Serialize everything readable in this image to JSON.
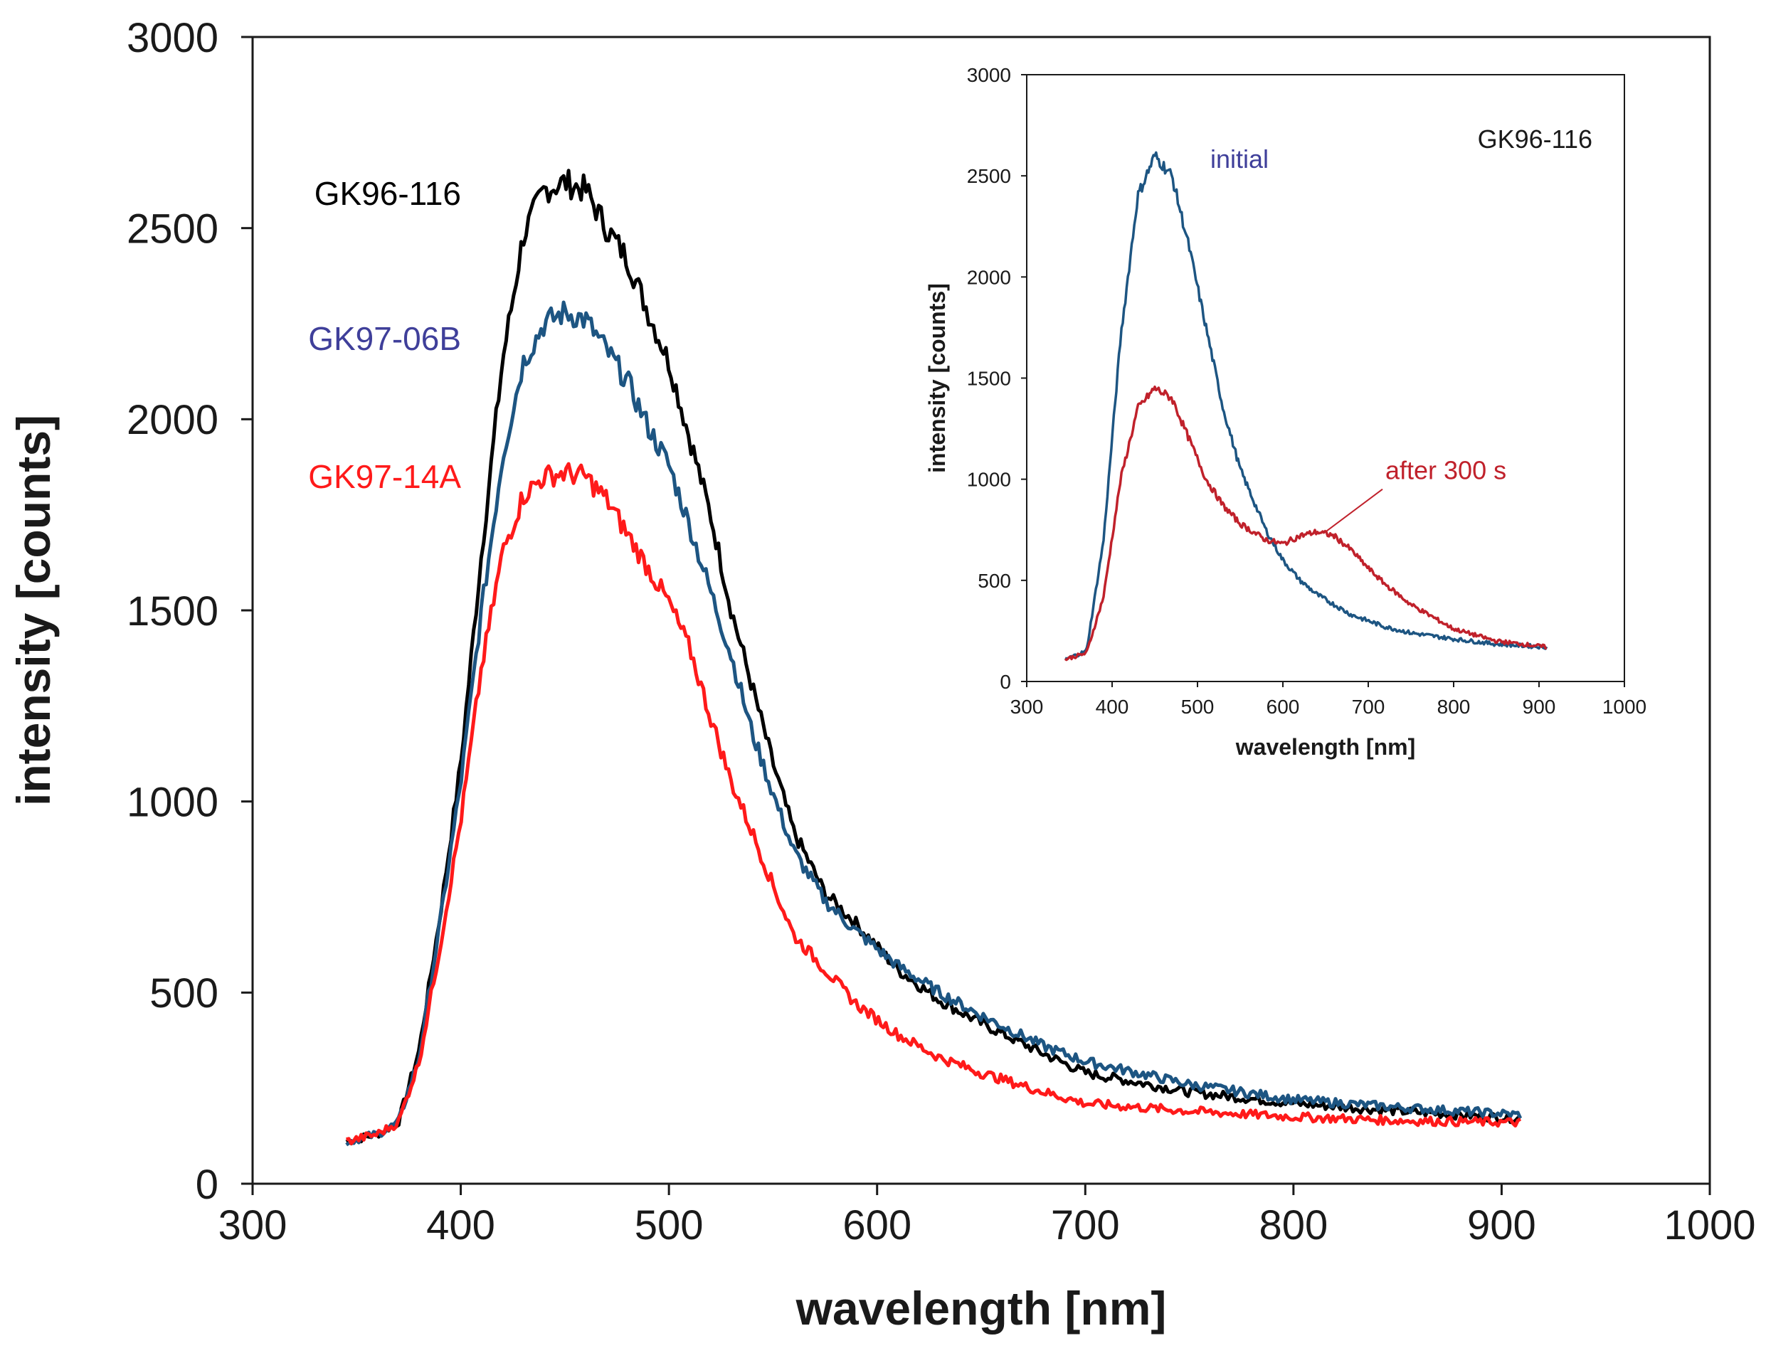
{
  "chart_data": [
    {
      "type": "line",
      "id": "main",
      "title": "",
      "xlabel": "wavelength [nm]",
      "ylabel": "intensity [counts]",
      "xlim": [
        300,
        1000
      ],
      "ylim": [
        0,
        3000
      ],
      "xticks": [
        300,
        400,
        500,
        600,
        700,
        800,
        900,
        1000
      ],
      "yticks": [
        0,
        500,
        1000,
        1500,
        2000,
        2500,
        3000
      ],
      "grid": false,
      "legend_position": "left, beside curves",
      "x": [
        345,
        360,
        370,
        380,
        390,
        400,
        410,
        420,
        430,
        440,
        450,
        460,
        470,
        480,
        490,
        500,
        510,
        520,
        530,
        540,
        550,
        560,
        575,
        590,
        610,
        630,
        650,
        680,
        700,
        750,
        800,
        850,
        910
      ],
      "series": [
        {
          "name": "GK96-116",
          "color": "#000000",
          "values": [
            110,
            130,
            160,
            350,
            700,
            1100,
            1650,
            2150,
            2480,
            2600,
            2620,
            2600,
            2500,
            2420,
            2280,
            2150,
            1950,
            1750,
            1500,
            1300,
            1100,
            920,
            760,
            680,
            560,
            480,
            420,
            340,
            290,
            240,
            210,
            190,
            170
          ]
        },
        {
          "name": "GK97-06B",
          "color": "#1d5582",
          "values": [
            110,
            130,
            160,
            330,
            680,
            1050,
            1500,
            1900,
            2150,
            2250,
            2280,
            2260,
            2180,
            2100,
            1980,
            1880,
            1720,
            1550,
            1380,
            1180,
            1020,
            870,
            740,
            660,
            570,
            500,
            440,
            360,
            320,
            260,
            220,
            200,
            180
          ]
        },
        {
          "name": "GK97-14A",
          "color": "#ff1a1a",
          "values": [
            110,
            130,
            160,
            320,
            620,
            950,
            1350,
            1650,
            1800,
            1850,
            1860,
            1850,
            1790,
            1700,
            1610,
            1520,
            1400,
            1220,
            1050,
            920,
            780,
            650,
            560,
            470,
            390,
            330,
            290,
            240,
            210,
            190,
            175,
            165,
            160
          ]
        }
      ]
    },
    {
      "type": "line",
      "id": "inset",
      "title": "GK96-116",
      "xlabel": "wavelength [nm]",
      "ylabel": "intensity [counts]",
      "xlim": [
        300,
        1000
      ],
      "ylim": [
        0,
        3000
      ],
      "xticks": [
        300,
        400,
        500,
        600,
        700,
        800,
        900,
        1000
      ],
      "yticks": [
        0,
        500,
        1000,
        1500,
        2000,
        2500,
        3000
      ],
      "grid": false,
      "legend_position": "labels next to curves",
      "x": [
        345,
        370,
        390,
        410,
        430,
        450,
        470,
        490,
        510,
        530,
        550,
        580,
        600,
        620,
        640,
        660,
        680,
        700,
        720,
        750,
        800,
        850,
        910
      ],
      "series": [
        {
          "name": "initial",
          "color": "#1d5582",
          "values": [
            110,
            150,
            700,
            1700,
            2400,
            2600,
            2500,
            2150,
            1750,
            1350,
            1050,
            750,
            600,
            500,
            430,
            380,
            330,
            300,
            270,
            240,
            210,
            185,
            170
          ]
        },
        {
          "name": "after 300 s",
          "color": "#c0212b",
          "values": [
            110,
            140,
            420,
            1000,
            1350,
            1450,
            1400,
            1200,
            1000,
            870,
            780,
            700,
            680,
            720,
            740,
            720,
            650,
            560,
            480,
            380,
            260,
            200,
            170
          ]
        }
      ],
      "annotations": [
        {
          "text": "initial",
          "color": "#3f3f9a",
          "x": 515,
          "y": 2540
        },
        {
          "text": "after 300 s",
          "color": "#c0212b",
          "x": 720,
          "y": 1000,
          "arrow_to_x": 650,
          "arrow_to_y": 740
        }
      ]
    }
  ]
}
